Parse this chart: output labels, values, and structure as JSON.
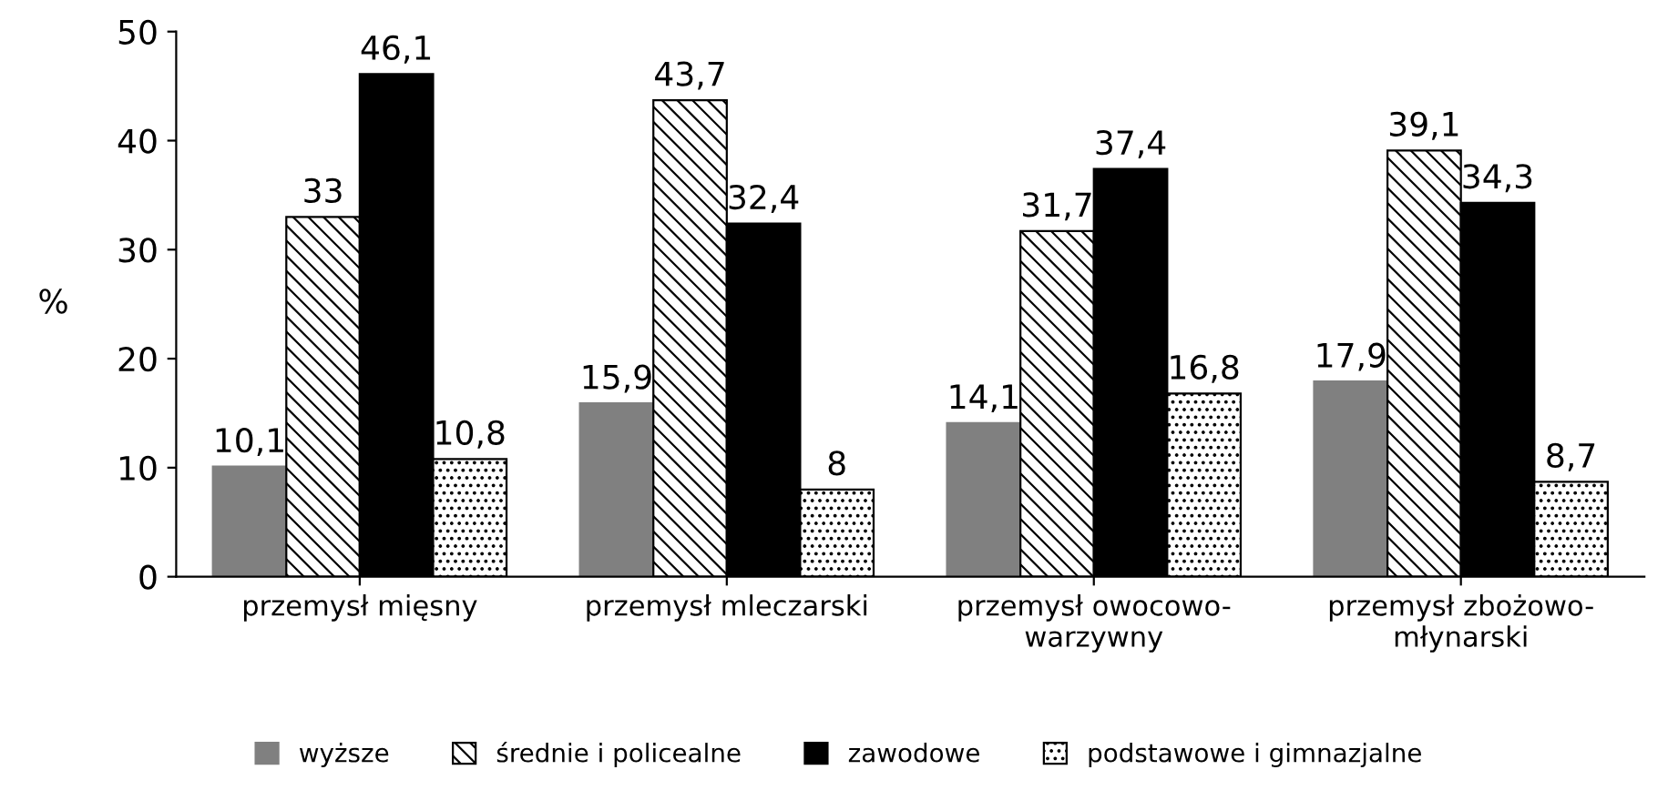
{
  "chart_data": {
    "type": "bar",
    "ylabel": "%",
    "categories": [
      "przemysł mięsny",
      "przemysł mleczarski",
      "przemysł owocowo-\nwarzywny",
      "przemysł zbożowo-\nmłynarski"
    ],
    "series": [
      {
        "name": "wyższe",
        "color": "#808080",
        "values": [
          10.1,
          15.9,
          14.1,
          17.9
        ],
        "value_labels": [
          "10,1",
          "15,9",
          "14,1",
          "17,9"
        ]
      },
      {
        "name": "średnie i policealne",
        "color": "#000000",
        "values": [
          33,
          43.7,
          31.7,
          39.1
        ],
        "value_labels": [
          "33",
          "43,7",
          "31,7",
          "39,1"
        ]
      },
      {
        "name": "zawodowe",
        "color": "#000000",
        "values": [
          46.1,
          32.4,
          37.4,
          34.3
        ],
        "value_labels": [
          "46,1",
          "32,4",
          "37,4",
          "34,3"
        ]
      },
      {
        "name": "podstawowe i gimnazjalne",
        "color": "#000000",
        "values": [
          10.8,
          8,
          16.8,
          8.7
        ],
        "value_labels": [
          "10,8",
          "8",
          "16,8",
          "8,7"
        ]
      }
    ],
    "ylim": [
      0,
      50
    ],
    "yticks": [
      0,
      10,
      20,
      30,
      40,
      50
    ],
    "grid": false,
    "legend": "bottom"
  }
}
